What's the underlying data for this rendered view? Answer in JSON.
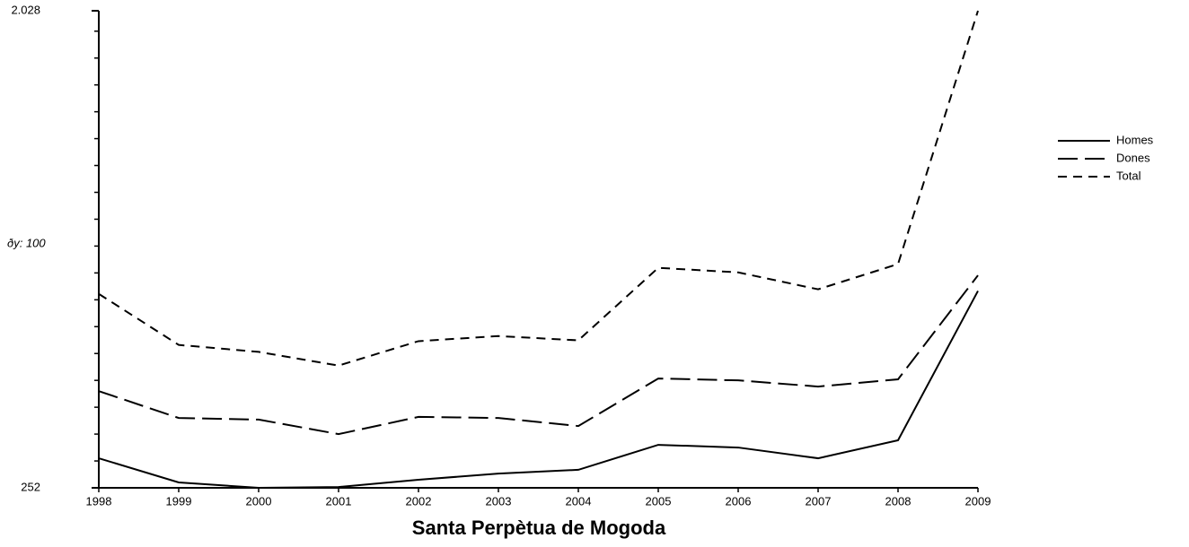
{
  "chart_data": {
    "type": "line",
    "title": "Santa Perpètua de Mogoda",
    "annotation": "ðy: 100",
    "categories": [
      "1998",
      "1999",
      "2000",
      "2001",
      "2002",
      "2003",
      "2004",
      "2005",
      "2006",
      "2007",
      "2008",
      "2009"
    ],
    "series": [
      {
        "name": "Homes",
        "color": "#000000",
        "dash": "solid",
        "values": [
          362,
          272,
          252,
          255,
          282,
          305,
          319,
          412,
          402,
          362,
          429,
          985
        ]
      },
      {
        "name": "Dones",
        "color": "#000000",
        "dash": "long",
        "values": [
          612,
          512,
          506,
          452,
          516,
          512,
          482,
          659,
          652,
          629,
          656,
          1043
        ]
      },
      {
        "name": "Total",
        "color": "#000000",
        "dash": "short",
        "values": [
          974,
          784,
          758,
          707,
          798,
          817,
          801,
          1071,
          1054,
          991,
          1085,
          2028
        ]
      }
    ],
    "ylim": [
      252,
      2028
    ],
    "yticks": [
      252,
      {
        "value": 2028,
        "label": "2.028"
      }
    ],
    "minor_step": 100,
    "legend": "right",
    "grid": false
  }
}
